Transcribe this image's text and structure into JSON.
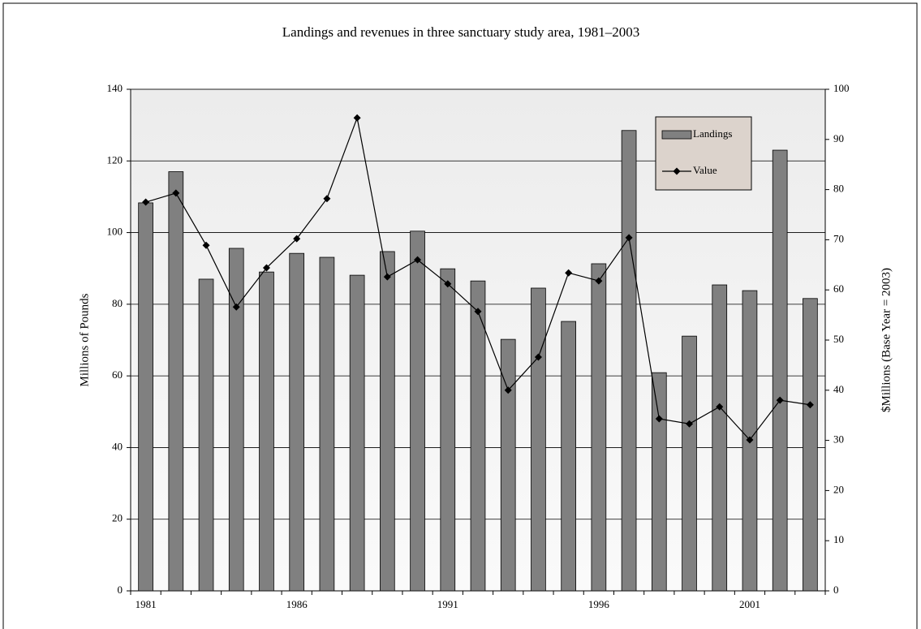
{
  "chart_data": {
    "type": "bar_line",
    "title": "Landings and revenues in three sanctuary study area, 1981–2003",
    "y_label": "Millions of Pounds",
    "y2_label": "$Millions (Base Year = 2003)",
    "categories": [
      "1981",
      null,
      null,
      null,
      null,
      "1986",
      null,
      null,
      null,
      null,
      "1991",
      null,
      null,
      null,
      null,
      "1996",
      null,
      null,
      null,
      null,
      "2001",
      null,
      null
    ],
    "series": [
      {
        "name": "Landings",
        "type": "bar",
        "color": "#808080",
        "axis": "y",
        "values": [
          108.3,
          117,
          87,
          95.6,
          89,
          94.2,
          93.1,
          88.1,
          94.7,
          100.4,
          89.9,
          86.5,
          70.2,
          84.5,
          75.2,
          91.3,
          128.5,
          60.9,
          71.1,
          85.4,
          83.8,
          123,
          81.6
        ]
      },
      {
        "name": "Value",
        "type": "line",
        "color": "#000000",
        "axis": "y2",
        "values": [
          77.5,
          79.3,
          68.9,
          56.6,
          64.4,
          70.2,
          78.2,
          94.3,
          62.6,
          66,
          61.2,
          55.7,
          40,
          46.6,
          63.4,
          61.8,
          70.4,
          34.3,
          33.3,
          36.7,
          30.1,
          38,
          37.1
        ]
      }
    ],
    "ylim": [
      0,
      140
    ],
    "yticks": [
      0,
      20,
      40,
      60,
      80,
      100,
      120,
      140
    ],
    "y2lim": [
      0,
      100
    ],
    "y2ticks": [
      0,
      10,
      20,
      30,
      40,
      50,
      60,
      70,
      80,
      90,
      100
    ],
    "grid": true,
    "legend": "upper right"
  }
}
